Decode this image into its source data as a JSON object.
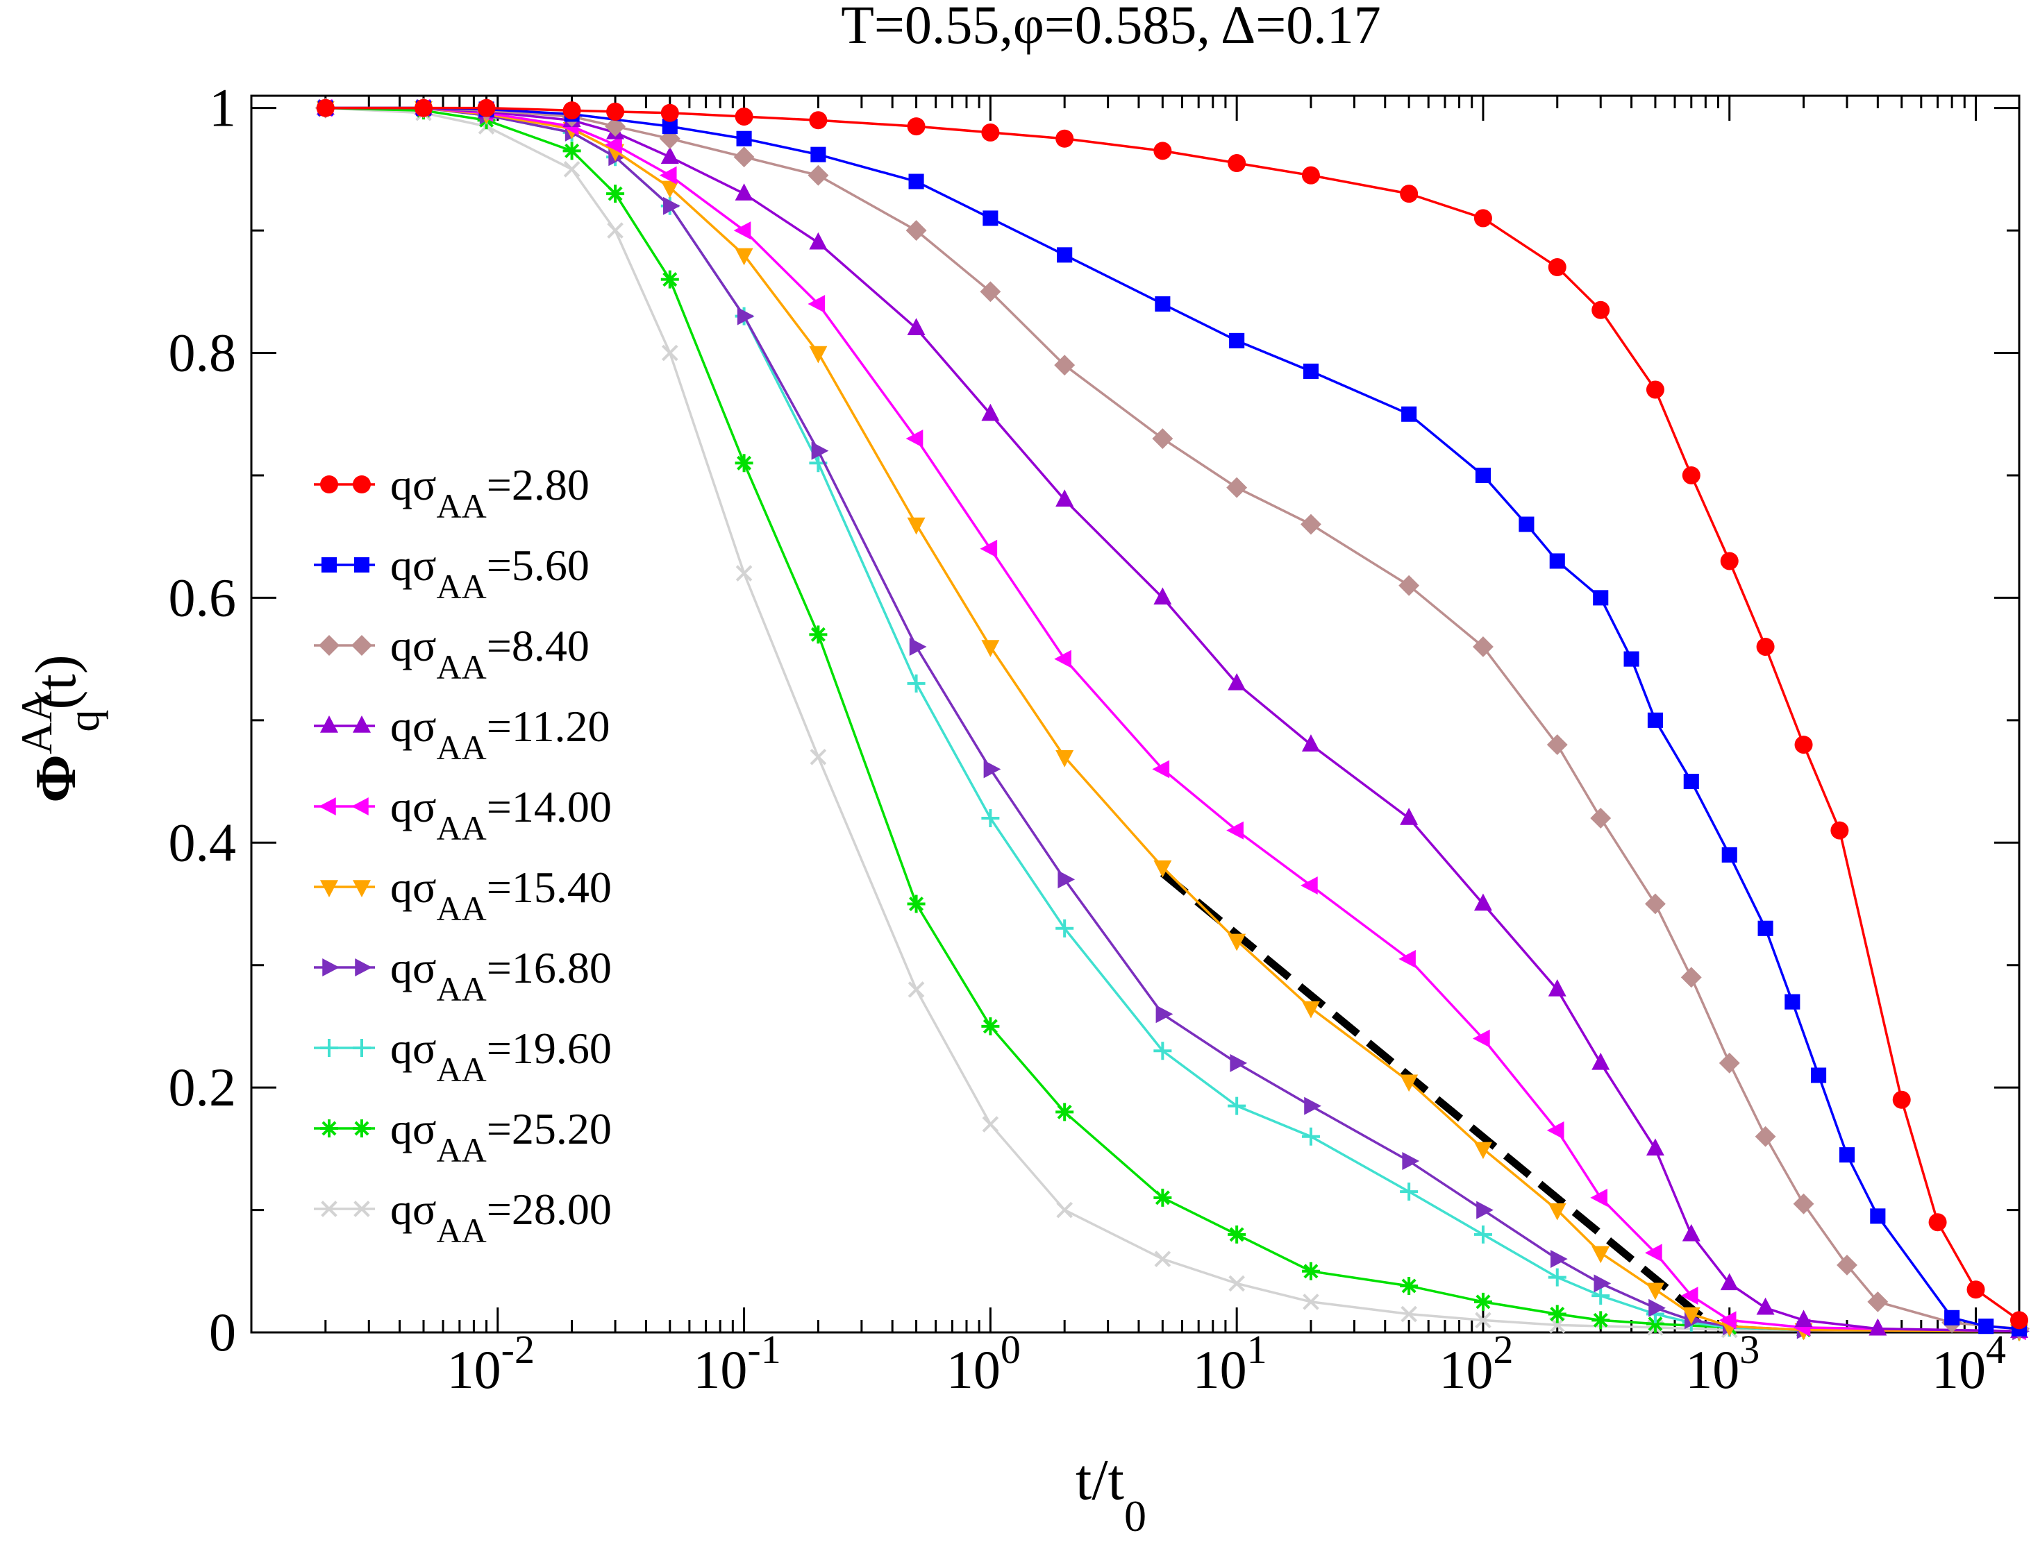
{
  "chart_data": {
    "type": "line",
    "title": "T=0.55,φ=0.585, Δ=0.17",
    "xlabel": {
      "main": "t/t",
      "sub": "0"
    },
    "ylabel": {
      "main": "Φ",
      "sup": "AA",
      "sub": "q",
      "tail": "(t)"
    },
    "xscale": "log",
    "xlim": [
      0.001,
      15000
    ],
    "ylim": [
      0,
      1.01
    ],
    "xticks": [
      {
        "value": 0.01,
        "base": "10",
        "exp": "-2"
      },
      {
        "value": 0.1,
        "base": "10",
        "exp": "-1"
      },
      {
        "value": 1,
        "base": "10",
        "exp": "0"
      },
      {
        "value": 10,
        "base": "10",
        "exp": "1"
      },
      {
        "value": 100,
        "base": "10",
        "exp": "2"
      },
      {
        "value": 1000,
        "base": "10",
        "exp": "3"
      },
      {
        "value": 10000,
        "base": "10",
        "exp": "4"
      }
    ],
    "yticks": [
      {
        "value": 0,
        "label": "0"
      },
      {
        "value": 0.2,
        "label": "0.2"
      },
      {
        "value": 0.4,
        "label": "0.4"
      },
      {
        "value": 0.6,
        "label": "0.6"
      },
      {
        "value": 0.8,
        "label": "0.8"
      },
      {
        "value": 1,
        "label": "1"
      }
    ],
    "legend_position": "left-center",
    "series": [
      {
        "name": "qσAA=2.80",
        "label_main": "qσ",
        "label_sub": "AA",
        "label_val": "=2.80",
        "color": "#ff0000",
        "marker": "circle",
        "points": [
          [
            0.002,
            1.0
          ],
          [
            0.005,
            1.0
          ],
          [
            0.009,
            1.0
          ],
          [
            0.02,
            0.998
          ],
          [
            0.03,
            0.997
          ],
          [
            0.05,
            0.996
          ],
          [
            0.1,
            0.993
          ],
          [
            0.2,
            0.99
          ],
          [
            0.5,
            0.985
          ],
          [
            1,
            0.98
          ],
          [
            2,
            0.975
          ],
          [
            5,
            0.965
          ],
          [
            10,
            0.955
          ],
          [
            20,
            0.945
          ],
          [
            50,
            0.93
          ],
          [
            100,
            0.91
          ],
          [
            200,
            0.87
          ],
          [
            300,
            0.835
          ],
          [
            500,
            0.77
          ],
          [
            700,
            0.7
          ],
          [
            1000,
            0.63
          ],
          [
            1400,
            0.56
          ],
          [
            2000,
            0.48
          ],
          [
            2800,
            0.41
          ],
          [
            5000,
            0.19
          ],
          [
            7000,
            0.09
          ],
          [
            10000,
            0.035
          ],
          [
            15000,
            0.01
          ]
        ]
      },
      {
        "name": "qσAA=5.60",
        "label_main": "qσ",
        "label_sub": "AA",
        "label_val": "=5.60",
        "color": "#0000ff",
        "marker": "square",
        "points": [
          [
            0.002,
            1.0
          ],
          [
            0.005,
            1.0
          ],
          [
            0.009,
            0.999
          ],
          [
            0.02,
            0.995
          ],
          [
            0.05,
            0.985
          ],
          [
            0.1,
            0.975
          ],
          [
            0.2,
            0.962
          ],
          [
            0.5,
            0.94
          ],
          [
            1,
            0.91
          ],
          [
            2,
            0.88
          ],
          [
            5,
            0.84
          ],
          [
            10,
            0.81
          ],
          [
            20,
            0.785
          ],
          [
            50,
            0.75
          ],
          [
            100,
            0.7
          ],
          [
            150,
            0.66
          ],
          [
            200,
            0.63
          ],
          [
            300,
            0.6
          ],
          [
            400,
            0.55
          ],
          [
            500,
            0.5
          ],
          [
            700,
            0.45
          ],
          [
            1000,
            0.39
          ],
          [
            1400,
            0.33
          ],
          [
            1800,
            0.27
          ],
          [
            2300,
            0.21
          ],
          [
            3000,
            0.145
          ],
          [
            4000,
            0.095
          ],
          [
            8000,
            0.012
          ],
          [
            11000,
            0.005
          ],
          [
            15000,
            0.003
          ]
        ]
      },
      {
        "name": "qσAA=8.40",
        "label_main": "qσ",
        "label_sub": "AA",
        "label_val": "=8.40",
        "color": "#bc8f8f",
        "marker": "diamond",
        "points": [
          [
            0.002,
            1.0
          ],
          [
            0.005,
            1.0
          ],
          [
            0.009,
            0.998
          ],
          [
            0.02,
            0.993
          ],
          [
            0.03,
            0.985
          ],
          [
            0.05,
            0.975
          ],
          [
            0.1,
            0.96
          ],
          [
            0.2,
            0.945
          ],
          [
            0.5,
            0.9
          ],
          [
            1,
            0.85
          ],
          [
            2,
            0.79
          ],
          [
            5,
            0.73
          ],
          [
            10,
            0.69
          ],
          [
            20,
            0.66
          ],
          [
            50,
            0.61
          ],
          [
            100,
            0.56
          ],
          [
            200,
            0.48
          ],
          [
            300,
            0.42
          ],
          [
            500,
            0.35
          ],
          [
            700,
            0.29
          ],
          [
            1000,
            0.22
          ],
          [
            1400,
            0.16
          ],
          [
            2000,
            0.105
          ],
          [
            3000,
            0.055
          ],
          [
            4000,
            0.025
          ],
          [
            8000,
            0.008
          ],
          [
            15000,
            0.003
          ]
        ]
      },
      {
        "name": "qσAA=11.20",
        "label_main": "qσ",
        "label_sub": "AA",
        "label_val": "=11.20",
        "color": "#9400d3",
        "marker": "triangle-up",
        "points": [
          [
            0.002,
            1.0
          ],
          [
            0.005,
            1.0
          ],
          [
            0.009,
            0.997
          ],
          [
            0.02,
            0.99
          ],
          [
            0.03,
            0.98
          ],
          [
            0.05,
            0.96
          ],
          [
            0.1,
            0.93
          ],
          [
            0.2,
            0.89
          ],
          [
            0.5,
            0.82
          ],
          [
            1,
            0.75
          ],
          [
            2,
            0.68
          ],
          [
            5,
            0.6
          ],
          [
            10,
            0.53
          ],
          [
            20,
            0.48
          ],
          [
            50,
            0.42
          ],
          [
            100,
            0.35
          ],
          [
            200,
            0.28
          ],
          [
            300,
            0.22
          ],
          [
            500,
            0.15
          ],
          [
            700,
            0.08
          ],
          [
            1000,
            0.04
          ],
          [
            1400,
            0.02
          ],
          [
            2000,
            0.01
          ],
          [
            4000,
            0.003
          ],
          [
            15000,
            0.001
          ]
        ]
      },
      {
        "name": "qσAA=14.00",
        "label_main": "qσ",
        "label_sub": "AA",
        "label_val": "=14.00",
        "color": "#ff00ff",
        "marker": "triangle-left",
        "points": [
          [
            0.002,
            1.0
          ],
          [
            0.005,
            1.0
          ],
          [
            0.009,
            0.996
          ],
          [
            0.02,
            0.985
          ],
          [
            0.03,
            0.97
          ],
          [
            0.05,
            0.945
          ],
          [
            0.1,
            0.9
          ],
          [
            0.2,
            0.84
          ],
          [
            0.5,
            0.73
          ],
          [
            1,
            0.64
          ],
          [
            2,
            0.55
          ],
          [
            5,
            0.46
          ],
          [
            10,
            0.41
          ],
          [
            20,
            0.365
          ],
          [
            50,
            0.305
          ],
          [
            100,
            0.24
          ],
          [
            200,
            0.165
          ],
          [
            300,
            0.11
          ],
          [
            500,
            0.065
          ],
          [
            700,
            0.03
          ],
          [
            1000,
            0.01
          ],
          [
            2000,
            0.004
          ],
          [
            15000,
            0.001
          ]
        ]
      },
      {
        "name": "qσAA=15.40",
        "label_main": "qσ",
        "label_sub": "AA",
        "label_val": "=15.40",
        "color": "#ffa500",
        "marker": "triangle-down",
        "points": [
          [
            0.002,
            1.0
          ],
          [
            0.005,
            1.0
          ],
          [
            0.009,
            0.995
          ],
          [
            0.02,
            0.983
          ],
          [
            0.03,
            0.965
          ],
          [
            0.05,
            0.935
          ],
          [
            0.1,
            0.88
          ],
          [
            0.2,
            0.8
          ],
          [
            0.5,
            0.66
          ],
          [
            1,
            0.56
          ],
          [
            2,
            0.47
          ],
          [
            5,
            0.38
          ],
          [
            10,
            0.32
          ],
          [
            20,
            0.265
          ],
          [
            50,
            0.205
          ],
          [
            100,
            0.15
          ],
          [
            200,
            0.1
          ],
          [
            300,
            0.065
          ],
          [
            500,
            0.035
          ],
          [
            700,
            0.015
          ],
          [
            1000,
            0.005
          ],
          [
            2000,
            0.002
          ],
          [
            15000,
            0.001
          ]
        ]
      },
      {
        "name": "qσAA=16.80",
        "label_main": "qσ",
        "label_sub": "AA",
        "label_val": "=16.80",
        "color": "#7b2fbe",
        "marker": "triangle-right",
        "points": [
          [
            0.002,
            1.0
          ],
          [
            0.005,
            1.0
          ],
          [
            0.009,
            0.994
          ],
          [
            0.02,
            0.98
          ],
          [
            0.03,
            0.96
          ],
          [
            0.05,
            0.92
          ],
          [
            0.1,
            0.83
          ],
          [
            0.2,
            0.72
          ],
          [
            0.5,
            0.56
          ],
          [
            1,
            0.46
          ],
          [
            2,
            0.37
          ],
          [
            5,
            0.26
          ],
          [
            10,
            0.22
          ],
          [
            20,
            0.185
          ],
          [
            50,
            0.14
          ],
          [
            100,
            0.1
          ],
          [
            200,
            0.06
          ],
          [
            300,
            0.04
          ],
          [
            500,
            0.02
          ],
          [
            700,
            0.01
          ],
          [
            1000,
            0.005
          ],
          [
            2000,
            0.002
          ],
          [
            15000,
            0.001
          ]
        ]
      },
      {
        "name": "qσAA=19.60",
        "label_main": "qσ",
        "label_sub": "AA",
        "label_val": "=19.60",
        "color": "#40e0d0",
        "marker": "plus",
        "points": [
          [
            0.002,
            1.0
          ],
          [
            0.005,
            1.0
          ],
          [
            0.009,
            0.994
          ],
          [
            0.02,
            0.98
          ],
          [
            0.03,
            0.96
          ],
          [
            0.05,
            0.92
          ],
          [
            0.1,
            0.83
          ],
          [
            0.2,
            0.71
          ],
          [
            0.5,
            0.53
          ],
          [
            1,
            0.42
          ],
          [
            2,
            0.33
          ],
          [
            5,
            0.23
          ],
          [
            10,
            0.185
          ],
          [
            20,
            0.16
          ],
          [
            50,
            0.115
          ],
          [
            100,
            0.08
          ],
          [
            200,
            0.045
          ],
          [
            300,
            0.03
          ],
          [
            500,
            0.015
          ],
          [
            700,
            0.008
          ],
          [
            1000,
            0.004
          ],
          [
            2000,
            0.002
          ],
          [
            15000,
            0.001
          ]
        ]
      },
      {
        "name": "qσAA=25.20",
        "label_main": "qσ",
        "label_sub": "AA",
        "label_val": "=25.20",
        "color": "#00e000",
        "marker": "asterisk",
        "points": [
          [
            0.002,
            1.0
          ],
          [
            0.005,
            0.998
          ],
          [
            0.009,
            0.99
          ],
          [
            0.02,
            0.965
          ],
          [
            0.03,
            0.93
          ],
          [
            0.05,
            0.86
          ],
          [
            0.1,
            0.71
          ],
          [
            0.2,
            0.57
          ],
          [
            0.5,
            0.35
          ],
          [
            1,
            0.25
          ],
          [
            2,
            0.18
          ],
          [
            5,
            0.11
          ],
          [
            10,
            0.08
          ],
          [
            20,
            0.05
          ],
          [
            50,
            0.038
          ],
          [
            100,
            0.025
          ],
          [
            200,
            0.015
          ],
          [
            300,
            0.01
          ],
          [
            500,
            0.007
          ],
          [
            1000,
            0.004
          ],
          [
            2000,
            0.002
          ],
          [
            15000,
            0.001
          ]
        ]
      },
      {
        "name": "qσAA=28.00",
        "label_main": "qσ",
        "label_sub": "AA",
        "label_val": "=28.00",
        "color": "#d3d3d3",
        "marker": "cross",
        "points": [
          [
            0.002,
            1.0
          ],
          [
            0.005,
            0.996
          ],
          [
            0.009,
            0.985
          ],
          [
            0.02,
            0.95
          ],
          [
            0.03,
            0.9
          ],
          [
            0.05,
            0.8
          ],
          [
            0.1,
            0.62
          ],
          [
            0.2,
            0.47
          ],
          [
            0.5,
            0.28
          ],
          [
            1,
            0.17
          ],
          [
            2,
            0.1
          ],
          [
            5,
            0.06
          ],
          [
            10,
            0.04
          ],
          [
            20,
            0.025
          ],
          [
            50,
            0.015
          ],
          [
            100,
            0.01
          ],
          [
            200,
            0.006
          ],
          [
            500,
            0.004
          ],
          [
            1000,
            0.002
          ],
          [
            15000,
            0.001
          ]
        ]
      }
    ],
    "fit_line": {
      "color": "#000000",
      "style": "dashed",
      "points": [
        [
          5,
          0.375
        ],
        [
          800,
          0.01
        ]
      ]
    }
  }
}
